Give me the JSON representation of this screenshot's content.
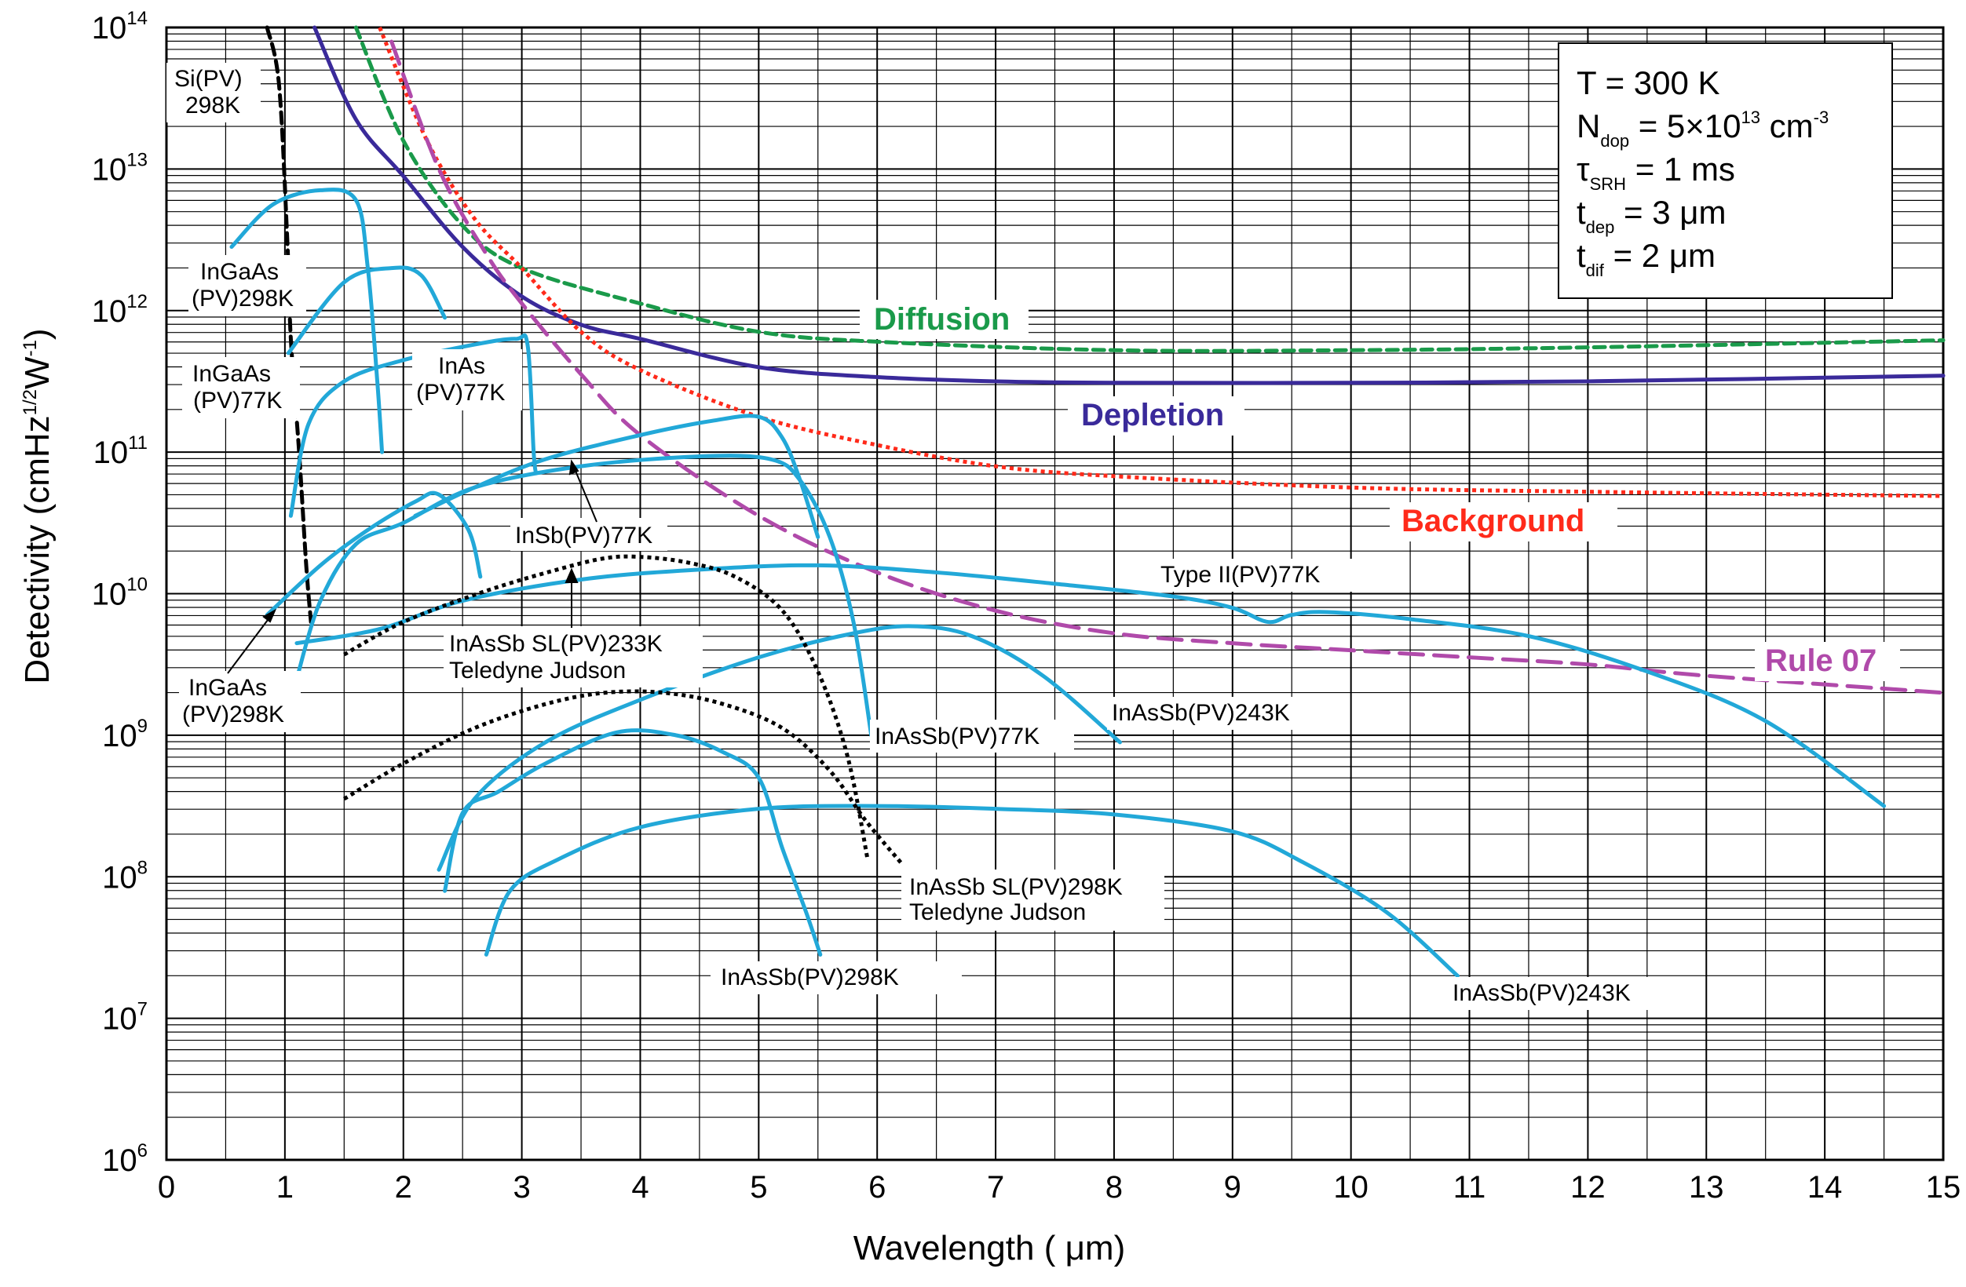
{
  "chart_data": {
    "type": "line",
    "xlabel": "Wavelength ( μm)",
    "ylabel": "Detectivity (cmHz",
    "ylabel_sup1": "1/2",
    "ylabel_mid": "W",
    "ylabel_sup2": "-1",
    "ylabel_end": ")",
    "xlim": [
      0,
      15
    ],
    "ylim_log10": [
      6,
      14
    ],
    "x_ticks": [
      "0",
      "1",
      "2",
      "3",
      "4",
      "5",
      "6",
      "7",
      "8",
      "9",
      "10",
      "11",
      "12",
      "13",
      "14",
      "15"
    ],
    "y_ticks": [
      {
        "base": "10",
        "exp": "6",
        "value": 6
      },
      {
        "base": "10",
        "exp": "7",
        "value": 7
      },
      {
        "base": "10",
        "exp": "8",
        "value": 8
      },
      {
        "base": "10",
        "exp": "9",
        "value": 9
      },
      {
        "base": "10",
        "exp": "10",
        "value": 10
      },
      {
        "base": "10",
        "exp": "11",
        "value": 11
      },
      {
        "base": "10",
        "exp": "12",
        "value": 12
      },
      {
        "base": "10",
        "exp": "13",
        "value": 13
      },
      {
        "base": "10",
        "exp": "14",
        "value": 14
      }
    ],
    "conditions": {
      "T": {
        "pre": "T = 300 K"
      },
      "N": {
        "main": "N",
        "sub": "dop",
        "rest": " = 5×10",
        "sup": "13",
        "unit": " cm",
        "unit_sup": "-3"
      },
      "tau": {
        "main": "τ",
        "sub": "SRH",
        "rest": " = 1 ms"
      },
      "tdep": {
        "main": "t",
        "sub": "dep",
        "rest": " = 3 μm"
      },
      "tdif": {
        "main": "t",
        "sub": "dif",
        "rest": " = 2 μm"
      }
    },
    "series": [
      {
        "name": "Diffusion",
        "color": "#1a9a4a",
        "dash": "dashed",
        "points": [
          [
            1.6,
            14
          ],
          [
            2,
            13.2
          ],
          [
            2.5,
            12.6
          ],
          [
            3,
            12.3
          ],
          [
            4,
            12.05
          ],
          [
            5,
            11.85
          ],
          [
            6,
            11.78
          ],
          [
            8,
            11.72
          ],
          [
            10,
            11.72
          ],
          [
            12,
            11.74
          ],
          [
            15,
            11.79
          ]
        ]
      },
      {
        "name": "Depletion",
        "color": "#3a2a9a",
        "dash": "solid",
        "points": [
          [
            1.25,
            14
          ],
          [
            1.6,
            13.35
          ],
          [
            2,
            12.95
          ],
          [
            2.5,
            12.45
          ],
          [
            3,
            12.1
          ],
          [
            3.5,
            11.9
          ],
          [
            4,
            11.8
          ],
          [
            5,
            11.6
          ],
          [
            6,
            11.53
          ],
          [
            7,
            11.5
          ],
          [
            8,
            11.49
          ],
          [
            10,
            11.49
          ],
          [
            12,
            11.5
          ],
          [
            15,
            11.54
          ]
        ]
      },
      {
        "name": "Background",
        "color": "#ff2a1a",
        "dash": "dotted",
        "points": [
          [
            1.8,
            14
          ],
          [
            2.2,
            13.2
          ],
          [
            2.6,
            12.65
          ],
          [
            3,
            12.3
          ],
          [
            3.5,
            11.85
          ],
          [
            4,
            11.58
          ],
          [
            5,
            11.25
          ],
          [
            6,
            11.05
          ],
          [
            7,
            10.9
          ],
          [
            8,
            10.83
          ],
          [
            10,
            10.75
          ],
          [
            12,
            10.72
          ],
          [
            15,
            10.69
          ]
        ]
      },
      {
        "name": "Rule 07",
        "color": "#b04aaa",
        "dash": "longdash",
        "points": [
          [
            1.9,
            13.9
          ],
          [
            2.3,
            13
          ],
          [
            2.7,
            12.4
          ],
          [
            3,
            12.05
          ],
          [
            3.5,
            11.55
          ],
          [
            4,
            11.12
          ],
          [
            5,
            10.55
          ],
          [
            6,
            10.15
          ],
          [
            7,
            9.88
          ],
          [
            8,
            9.72
          ],
          [
            9,
            9.65
          ],
          [
            10,
            9.6
          ],
          [
            11,
            9.55
          ],
          [
            12,
            9.5
          ],
          [
            13,
            9.42
          ],
          [
            15,
            9.3
          ]
        ]
      },
      {
        "name": "Si(PV) 298K",
        "color": "#000000",
        "dash": "dashed",
        "points": [
          [
            0.85,
            14
          ],
          [
            0.95,
            13.6
          ],
          [
            1.02,
            12.5
          ],
          [
            1.05,
            11.8
          ],
          [
            1.12,
            11.0
          ],
          [
            1.18,
            10.2
          ],
          [
            1.22,
            9.8
          ]
        ]
      },
      {
        "name": "InGaAs (PV)298K",
        "color": "#22a8d8",
        "dash": "solid",
        "points": [
          [
            0.55,
            12.45
          ],
          [
            0.9,
            12.75
          ],
          [
            1.3,
            12.85
          ],
          [
            1.6,
            12.78
          ],
          [
            1.7,
            12.3
          ],
          [
            1.78,
            11.5
          ],
          [
            1.82,
            11
          ]
        ]
      },
      {
        "name": "InGaAs (PV)77K",
        "color": "#22a8d8",
        "dash": "solid",
        "points": [
          [
            1.03,
            11.7
          ],
          [
            1.5,
            12.2
          ],
          [
            1.9,
            12.3
          ],
          [
            2.15,
            12.25
          ],
          [
            2.35,
            11.95
          ]
        ]
      },
      {
        "name": "InAs (PV)77K",
        "color": "#22a8d8",
        "dash": "solid",
        "points": [
          [
            1.05,
            10.55
          ],
          [
            1.2,
            11.2
          ],
          [
            1.5,
            11.5
          ],
          [
            2,
            11.65
          ],
          [
            2.6,
            11.76
          ],
          [
            2.95,
            11.8
          ],
          [
            3.05,
            11.75
          ],
          [
            3.1,
            11.0
          ],
          [
            3.12,
            10.85
          ]
        ]
      },
      {
        "name": "InSb(PV)77K",
        "color": "#22a8d8",
        "dash": "solid",
        "points": [
          [
            2.1,
            10.55
          ],
          [
            2.6,
            10.75
          ],
          [
            3.2,
            10.95
          ],
          [
            4,
            11.12
          ],
          [
            4.6,
            11.22
          ],
          [
            5,
            11.25
          ],
          [
            5.2,
            11.1
          ],
          [
            5.35,
            10.8
          ],
          [
            5.5,
            10.4
          ]
        ]
      },
      {
        "name": "InGaAs (PV)298K low",
        "color": "#22a8d8",
        "dash": "solid",
        "points": [
          [
            0.85,
            9.85
          ],
          [
            1.3,
            10.2
          ],
          [
            1.7,
            10.45
          ],
          [
            2.1,
            10.65
          ],
          [
            2.3,
            10.7
          ],
          [
            2.55,
            10.45
          ],
          [
            2.65,
            10.12
          ]
        ]
      },
      {
        "name": "InAsSb(PV)77K",
        "color": "#22a8d8",
        "dash": "solid",
        "points": [
          [
            1.1,
            9.4
          ],
          [
            1.3,
            9.95
          ],
          [
            1.6,
            10.35
          ],
          [
            2,
            10.5
          ],
          [
            2.6,
            10.75
          ],
          [
            3.5,
            10.9
          ],
          [
            4.5,
            10.97
          ],
          [
            5.1,
            10.95
          ],
          [
            5.35,
            10.8
          ],
          [
            5.6,
            10.4
          ],
          [
            5.8,
            9.8
          ],
          [
            5.95,
            9.0
          ]
        ]
      },
      {
        "name": "Type II(PV)77K",
        "color": "#22a8d8",
        "dash": "solid",
        "points": [
          [
            1.1,
            9.65
          ],
          [
            1.8,
            9.75
          ],
          [
            2.5,
            9.95
          ],
          [
            3.5,
            10.1
          ],
          [
            4.5,
            10.17
          ],
          [
            5.5,
            10.2
          ],
          [
            6.5,
            10.15
          ],
          [
            7.5,
            10.07
          ],
          [
            8.5,
            9.98
          ],
          [
            9,
            9.9
          ],
          [
            9.3,
            9.8
          ],
          [
            9.5,
            9.85
          ],
          [
            9.8,
            9.87
          ],
          [
            10.5,
            9.82
          ],
          [
            11.5,
            9.7
          ],
          [
            12.5,
            9.45
          ],
          [
            13.5,
            9.1
          ],
          [
            14.5,
            8.5
          ]
        ]
      },
      {
        "name": "InAsSb(PV)243K",
        "color": "#22a8d8",
        "dash": "solid",
        "points": [
          [
            2.3,
            8.05
          ],
          [
            2.6,
            8.55
          ],
          [
            3.2,
            8.95
          ],
          [
            4,
            9.25
          ],
          [
            5,
            9.55
          ],
          [
            5.8,
            9.72
          ],
          [
            6.3,
            9.77
          ],
          [
            6.8,
            9.7
          ],
          [
            7.4,
            9.42
          ],
          [
            8.05,
            8.95
          ]
        ]
      },
      {
        "name": "InAsSb(PV)298K",
        "color": "#22a8d8",
        "dash": "solid",
        "points": [
          [
            2.35,
            7.9
          ],
          [
            2.5,
            8.45
          ],
          [
            2.8,
            8.6
          ],
          [
            3.2,
            8.8
          ],
          [
            3.8,
            9.02
          ],
          [
            4.3,
            9.0
          ],
          [
            4.7,
            8.88
          ],
          [
            5,
            8.7
          ],
          [
            5.2,
            8.2
          ],
          [
            5.4,
            7.75
          ],
          [
            5.52,
            7.45
          ]
        ]
      },
      {
        "name": "InAsSb(PV)243K low",
        "color": "#22a8d8",
        "dash": "solid",
        "points": [
          [
            2.7,
            7.45
          ],
          [
            2.9,
            7.9
          ],
          [
            3.3,
            8.12
          ],
          [
            4,
            8.35
          ],
          [
            5,
            8.48
          ],
          [
            6,
            8.5
          ],
          [
            7,
            8.48
          ],
          [
            8,
            8.44
          ],
          [
            9,
            8.32
          ],
          [
            9.6,
            8.1
          ],
          [
            10.3,
            7.75
          ],
          [
            10.9,
            7.3
          ]
        ]
      },
      {
        "name": "InAsSb SL(PV)233K Teledyne Judson",
        "color": "#000000",
        "dash": "dotted",
        "points": [
          [
            1.5,
            9.57
          ],
          [
            2,
            9.8
          ],
          [
            2.7,
            10.02
          ],
          [
            3.3,
            10.17
          ],
          [
            3.7,
            10.25
          ],
          [
            4,
            10.26
          ],
          [
            4.4,
            10.22
          ],
          [
            4.8,
            10.12
          ],
          [
            5.2,
            9.88
          ],
          [
            5.5,
            9.45
          ],
          [
            5.75,
            8.85
          ],
          [
            5.92,
            8.12
          ]
        ]
      },
      {
        "name": "InAsSb SL(PV)298K Teledyne Judson",
        "color": "#000000",
        "dash": "dotted",
        "points": [
          [
            1.5,
            8.55
          ],
          [
            2,
            8.8
          ],
          [
            2.6,
            9.05
          ],
          [
            3.2,
            9.22
          ],
          [
            3.7,
            9.3
          ],
          [
            4.2,
            9.3
          ],
          [
            4.7,
            9.22
          ],
          [
            5.2,
            9.05
          ],
          [
            5.6,
            8.75
          ],
          [
            5.9,
            8.4
          ],
          [
            6.2,
            8.1
          ]
        ]
      }
    ],
    "labels": {
      "si": [
        "Si(PV)",
        "298K"
      ],
      "ingaas298_top": [
        "InGaAs",
        "(PV)298K"
      ],
      "ingaas77": [
        "InGaAs",
        "(PV)77K"
      ],
      "inas77": [
        "InAs",
        "(PV)77K"
      ],
      "insb77": "InSb(PV)77K",
      "sl233": [
        "InAsSb SL(PV)233K",
        "Teledyne Judson"
      ],
      "ingaas298_bottom": [
        "InGaAs",
        "(PV)298K"
      ],
      "inassb77": "InAsSb(PV)77K",
      "inassb243_upper": "InAsSb(PV)243K",
      "typeII": "Type II(PV)77K",
      "sl298": [
        "InAsSb SL(PV)298K",
        "Teledyne Judson"
      ],
      "inassb298": "InAsSb(PV)298K",
      "inassb243_lower": "InAsSb(PV)243K",
      "diffusion": "Diffusion",
      "depletion": "Depletion",
      "background": "Background",
      "rule07": "Rule 07"
    }
  }
}
